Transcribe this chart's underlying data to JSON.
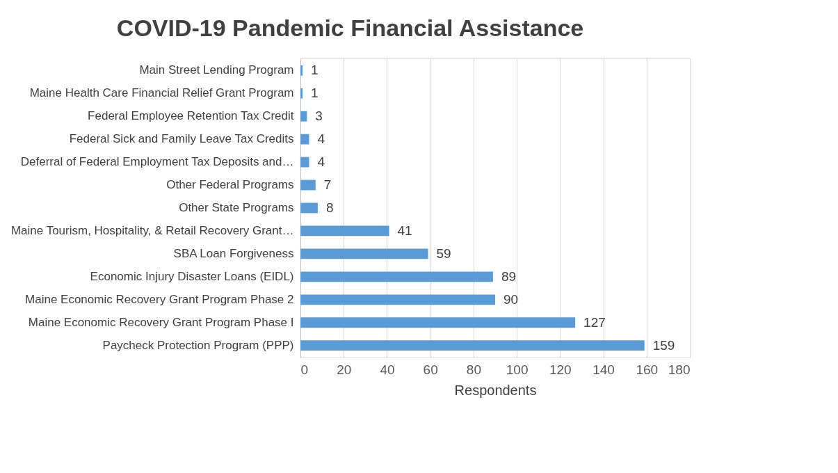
{
  "chart_data": {
    "type": "bar",
    "orientation": "horizontal",
    "title": "COVID-19 Pandemic Financial Assistance",
    "xlabel": "Respondents",
    "categories": [
      "Main Street Lending Program",
      "Maine Health Care Financial Relief Grant Program",
      "Federal Employee Retention Tax Credit",
      "Federal Sick and Family Leave Tax Credits",
      "Deferral of Federal Employment Tax Deposits and…",
      "Other Federal Programs",
      "Other State Programs",
      "Maine Tourism, Hospitality, & Retail Recovery Grant…",
      "SBA Loan Forgiveness",
      "Economic Injury Disaster Loans (EIDL)",
      "Maine Economic Recovery Grant Program Phase 2",
      "Maine Economic Recovery Grant Program Phase I",
      "Paycheck Protection Program (PPP)"
    ],
    "values": [
      1,
      1,
      3,
      4,
      4,
      7,
      8,
      41,
      59,
      89,
      90,
      127,
      159
    ],
    "color": "#5b9bd5",
    "xlim": [
      0,
      180
    ],
    "xticks": [
      0,
      20,
      40,
      60,
      80,
      100,
      120,
      140,
      160,
      180
    ],
    "grid": "x",
    "data_labels": true
  }
}
